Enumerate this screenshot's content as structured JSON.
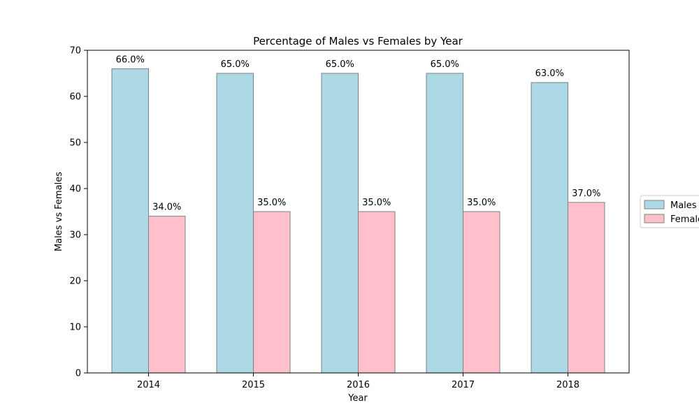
{
  "chart_data": {
    "type": "bar",
    "title": "Percentage of Males vs Females by Year",
    "xlabel": "Year",
    "ylabel": "Males vs Females",
    "categories": [
      "2014",
      "2015",
      "2016",
      "2017",
      "2018"
    ],
    "series": [
      {
        "name": "Males",
        "values": [
          66.0,
          65.0,
          65.0,
          65.0,
          63.0
        ],
        "labels": [
          "66.0%",
          "65.0%",
          "65.0%",
          "65.0%",
          "63.0%"
        ],
        "color": "#add8e6"
      },
      {
        "name": "Females",
        "values": [
          34.0,
          35.0,
          35.0,
          35.0,
          37.0
        ],
        "labels": [
          "34.0%",
          "35.0%",
          "35.0%",
          "35.0%",
          "37.0%"
        ],
        "color": "#ffc0cb"
      }
    ],
    "ylim": [
      0,
      70
    ],
    "yticks": [
      "0",
      "10",
      "20",
      "30",
      "40",
      "50",
      "60",
      "70"
    ],
    "grid": false,
    "legend_position": "center-right",
    "bar_edge_color": "#808080"
  }
}
